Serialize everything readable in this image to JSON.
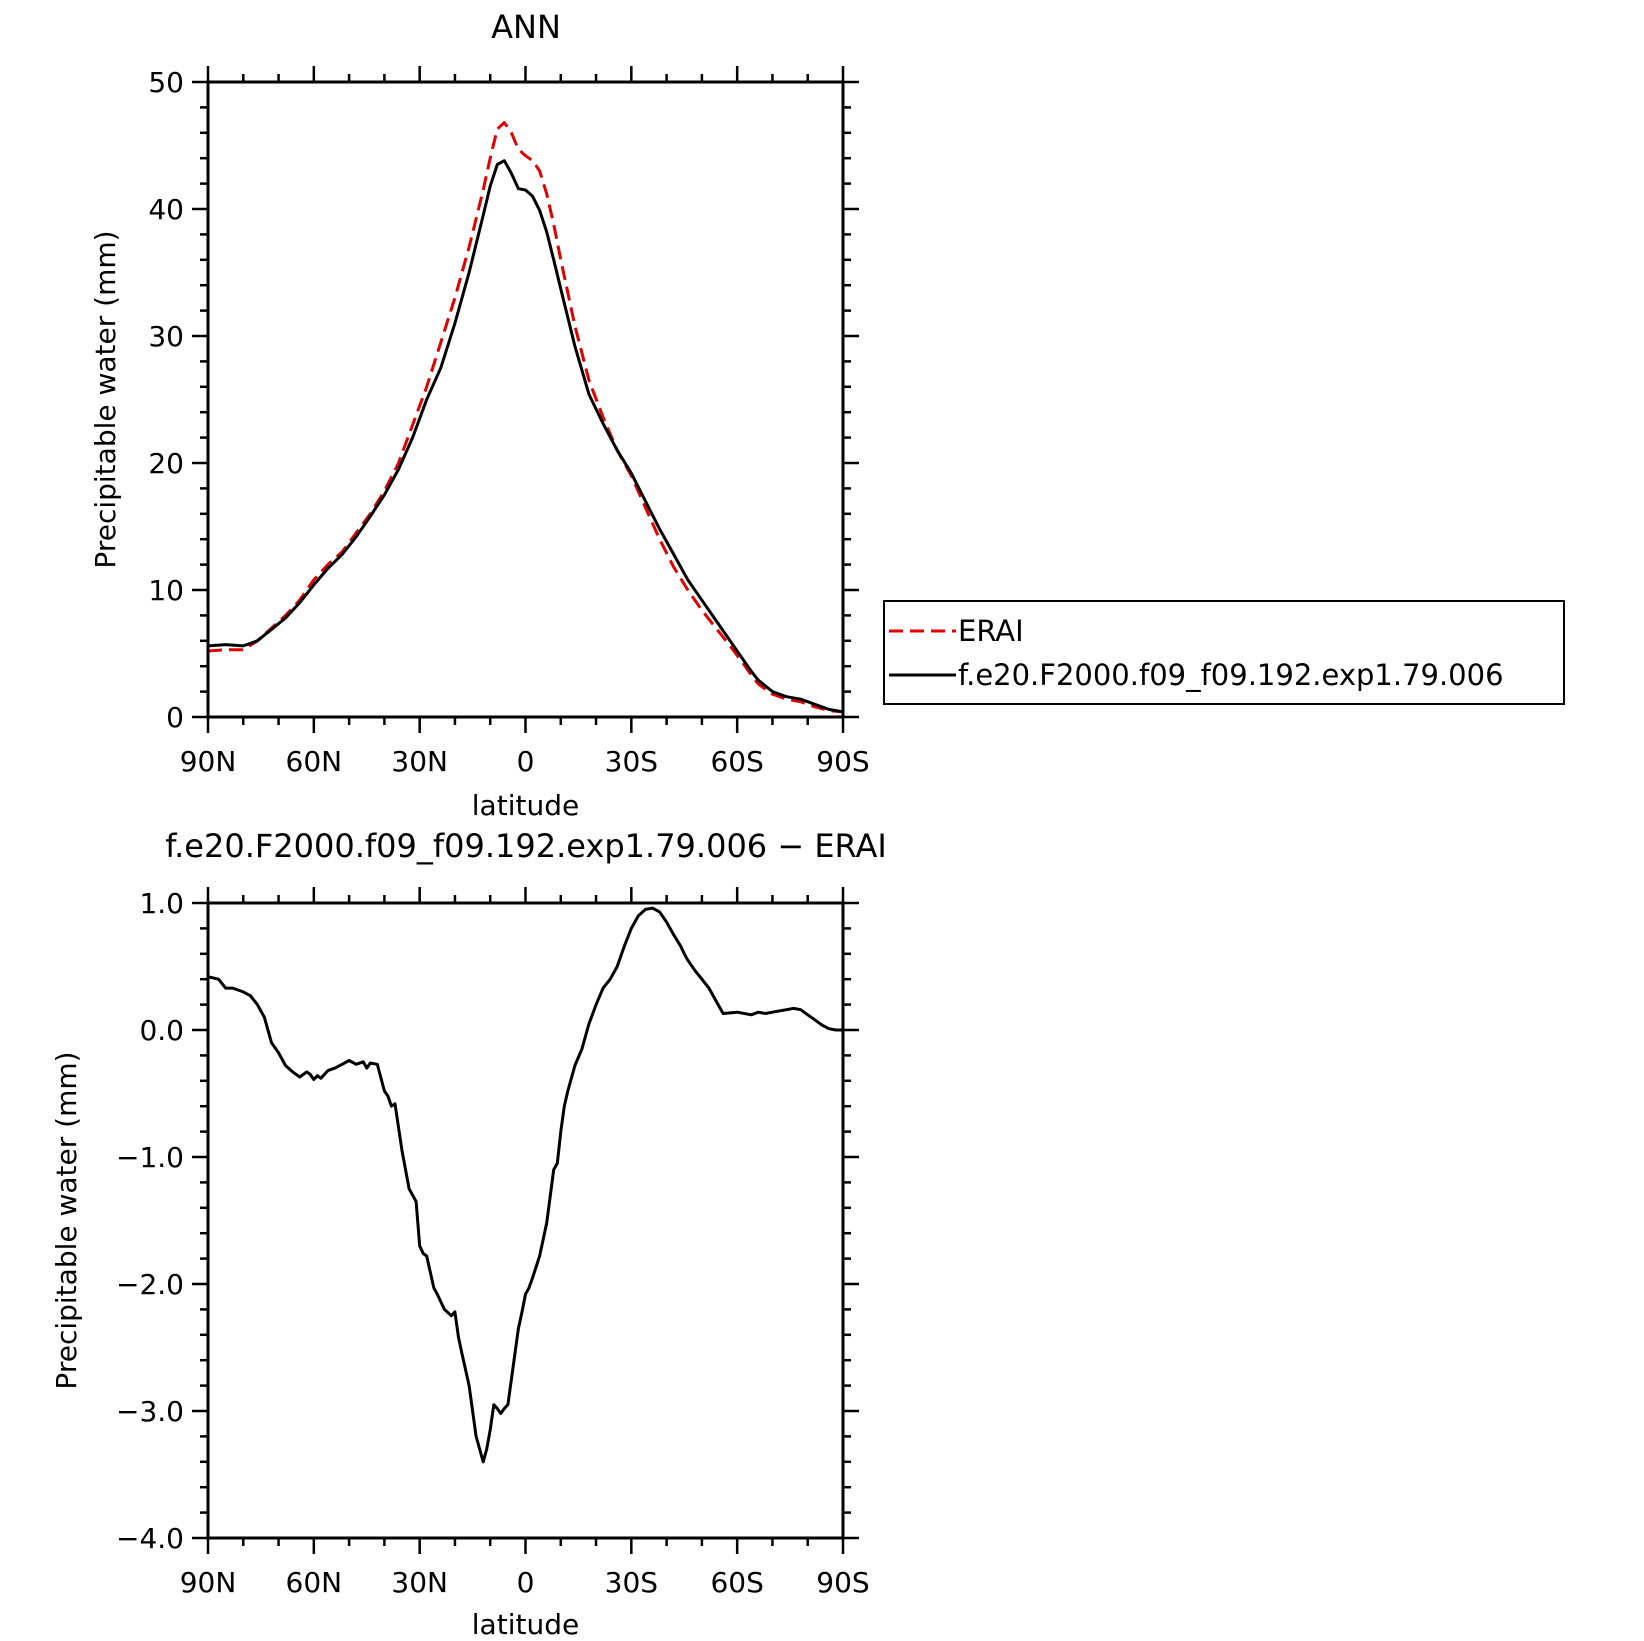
{
  "chart_data": [
    {
      "type": "line",
      "title": "ANN",
      "xlabel": "latitude",
      "ylabel": "Precipitable water (mm)",
      "x_unit": "degrees latitude (90N=90, 90S=-90)",
      "xlim": [
        90,
        -90
      ],
      "ylim": [
        0,
        50
      ],
      "xticks": [
        90,
        60,
        30,
        0,
        -30,
        -60,
        -90
      ],
      "xtick_labels": [
        "90N",
        "60N",
        "30N",
        "0",
        "30S",
        "60S",
        "90S"
      ],
      "yticks": [
        0,
        10,
        20,
        30,
        40,
        50
      ],
      "ytick_labels": [
        "0",
        "10",
        "20",
        "30",
        "40",
        "50"
      ],
      "grid": false,
      "legend": "outside-right",
      "series": [
        {
          "name": "ERAI",
          "color": "#e00000",
          "dash": "dashed",
          "x": [
            90,
            85,
            80,
            76,
            72,
            68,
            64,
            60,
            56,
            52,
            48,
            44,
            40,
            36,
            32,
            28,
            24,
            20,
            16,
            12,
            10,
            8,
            6,
            4,
            2,
            0,
            -2,
            -4,
            -6,
            -8,
            -10,
            -14,
            -18,
            -22,
            -26,
            -30,
            -34,
            -38,
            -42,
            -46,
            -50,
            -54,
            -58,
            -62,
            -64,
            -66,
            -70,
            -74,
            -78,
            -82,
            -86,
            -90
          ],
          "y": [
            5.2,
            5.3,
            5.3,
            6.0,
            7.0,
            8.0,
            9.2,
            10.8,
            12.0,
            13.0,
            14.5,
            16.0,
            17.8,
            20.0,
            23.0,
            26.0,
            29.5,
            33.0,
            37.0,
            41.5,
            44.0,
            46.3,
            46.8,
            46.0,
            44.7,
            44.2,
            43.8,
            43.0,
            41.2,
            38.8,
            36.0,
            30.8,
            26.5,
            23.6,
            21.0,
            19.0,
            16.5,
            14.0,
            11.8,
            10.0,
            8.4,
            7.0,
            5.6,
            4.1,
            3.3,
            2.6,
            1.8,
            1.4,
            1.2,
            0.8,
            0.5,
            0.4
          ]
        },
        {
          "name": "f.e20.F2000.f09_f09.192.exp1.79.006",
          "color": "#000000",
          "dash": "solid",
          "x": [
            90,
            85,
            80,
            76,
            72,
            68,
            64,
            60,
            56,
            52,
            48,
            44,
            40,
            36,
            32,
            28,
            24,
            20,
            16,
            12,
            10,
            8,
            6,
            4,
            2,
            0,
            -2,
            -4,
            -6,
            -8,
            -10,
            -14,
            -18,
            -22,
            -26,
            -30,
            -34,
            -38,
            -42,
            -46,
            -50,
            -54,
            -58,
            -62,
            -64,
            -66,
            -70,
            -74,
            -78,
            -82,
            -86,
            -90
          ],
          "y": [
            5.6,
            5.7,
            5.6,
            6.0,
            6.9,
            7.8,
            9.0,
            10.4,
            11.7,
            12.8,
            14.2,
            15.8,
            17.5,
            19.5,
            22.0,
            25.0,
            27.5,
            31.0,
            35.0,
            39.5,
            41.8,
            43.5,
            43.8,
            42.8,
            41.6,
            41.5,
            41.0,
            39.9,
            38.2,
            36.0,
            33.7,
            29.2,
            25.4,
            23.1,
            21.0,
            19.2,
            17.0,
            14.8,
            12.8,
            10.8,
            9.2,
            7.6,
            6.0,
            4.4,
            3.6,
            2.9,
            2.0,
            1.6,
            1.4,
            1.0,
            0.6,
            0.4
          ]
        }
      ]
    },
    {
      "type": "line",
      "title": "f.e20.F2000.f09_f09.192.exp1.79.006 − ERAI",
      "xlabel": "latitude",
      "ylabel": "Precipitable water (mm)",
      "x_unit": "degrees latitude (90N=90, 90S=-90)",
      "xlim": [
        90,
        -90
      ],
      "ylim": [
        -4.0,
        1.0
      ],
      "xticks": [
        90,
        60,
        30,
        0,
        -30,
        -60,
        -90
      ],
      "xtick_labels": [
        "90N",
        "60N",
        "30N",
        "0",
        "30S",
        "60S",
        "90S"
      ],
      "yticks": [
        1.0,
        0.0,
        -1.0,
        -2.0,
        -3.0,
        -4.0
      ],
      "ytick_labels": [
        "1.0",
        "0.0",
        "−1.0",
        "−2.0",
        "−3.0",
        "−4.0"
      ],
      "grid": false,
      "series": [
        {
          "color": "#000000",
          "dash": "solid",
          "x": [
            90,
            87,
            85,
            83,
            80,
            78,
            76,
            74,
            72,
            70,
            68,
            66,
            64,
            62,
            61,
            60,
            59,
            58,
            56,
            54,
            52,
            50,
            48,
            46,
            45,
            44,
            42,
            40,
            39,
            38,
            37,
            35,
            33,
            31,
            30,
            29,
            28,
            26,
            25,
            23,
            21,
            20,
            19,
            18,
            16,
            14,
            12,
            11,
            10,
            9,
            8,
            7,
            6,
            5,
            4,
            2,
            1,
            0,
            -1,
            -2,
            -4,
            -6,
            -8,
            -9,
            -10,
            -11,
            -12,
            -14,
            -16,
            -18,
            -20,
            -22,
            -24,
            -26,
            -28,
            -30,
            -32,
            -34,
            -36,
            -38,
            -40,
            -42,
            -44,
            -45,
            -46,
            -48,
            -50,
            -52,
            -56,
            -60,
            -64,
            -66,
            -68,
            -70,
            -72,
            -74,
            -76,
            -78,
            -80,
            -82,
            -84,
            -86,
            -88,
            -90
          ],
          "y": [
            0.42,
            0.4,
            0.33,
            0.33,
            0.3,
            0.27,
            0.2,
            0.1,
            -0.1,
            -0.18,
            -0.28,
            -0.33,
            -0.37,
            -0.33,
            -0.35,
            -0.39,
            -0.36,
            -0.38,
            -0.32,
            -0.3,
            -0.27,
            -0.24,
            -0.27,
            -0.25,
            -0.3,
            -0.26,
            -0.27,
            -0.48,
            -0.52,
            -0.6,
            -0.58,
            -0.95,
            -1.25,
            -1.35,
            -1.7,
            -1.76,
            -1.78,
            -2.03,
            -2.08,
            -2.2,
            -2.25,
            -2.22,
            -2.42,
            -2.55,
            -2.8,
            -3.2,
            -3.4,
            -3.3,
            -3.15,
            -2.95,
            -2.98,
            -3.02,
            -2.98,
            -2.95,
            -2.75,
            -2.35,
            -2.22,
            -2.08,
            -2.03,
            -1.95,
            -1.78,
            -1.52,
            -1.1,
            -1.05,
            -0.8,
            -0.6,
            -0.48,
            -0.28,
            -0.15,
            0.05,
            0.2,
            0.33,
            0.4,
            0.5,
            0.66,
            0.8,
            0.9,
            0.95,
            0.96,
            0.93,
            0.85,
            0.75,
            0.66,
            0.6,
            0.55,
            0.47,
            0.4,
            0.33,
            0.13,
            0.14,
            0.12,
            0.14,
            0.13,
            0.14,
            0.15,
            0.16,
            0.17,
            0.16,
            0.12,
            0.08,
            0.04,
            0.01,
            0.0,
            0.0
          ]
        }
      ]
    }
  ]
}
